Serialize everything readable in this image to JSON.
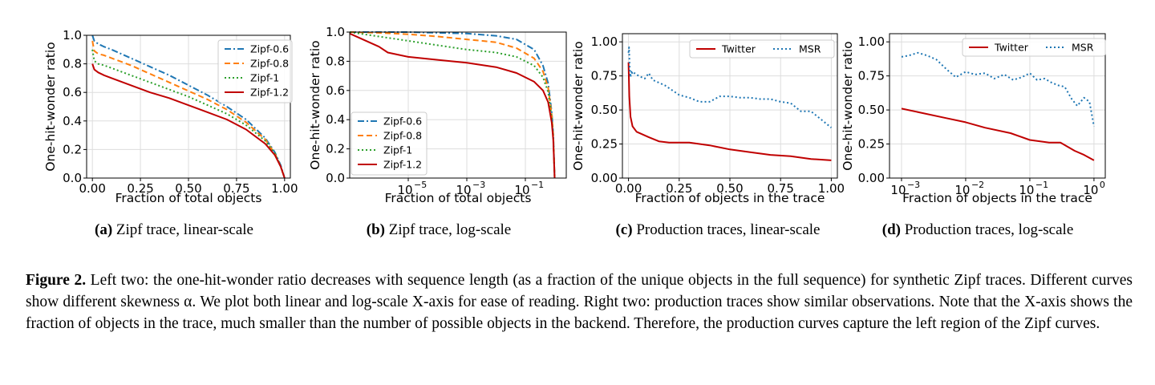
{
  "colors": {
    "blue": "#1f77b4",
    "orange": "#ff7f0e",
    "green": "#2ca02c",
    "red": "#c00000",
    "grid": "#dddddd",
    "frame": "#000000"
  },
  "panel_captions": [
    {
      "label": "(a)",
      "text": "Zipf trace, linear-scale"
    },
    {
      "label": "(b)",
      "text": "Zipf trace, log-scale"
    },
    {
      "label": "(c)",
      "text": "Production traces, linear-scale"
    },
    {
      "label": "(d)",
      "text": "Production traces, log-scale"
    }
  ],
  "figure_caption": {
    "label": "Figure 2.",
    "text": "Left two: the one-hit-wonder ratio decreases with sequence length (as a fraction of the unique objects in the full sequence) for synthetic Zipf traces. Different curves show different skewness α. We plot both linear and log-scale X-axis for ease of reading. Right two: production traces show similar observations. Note that the X-axis shows the fraction of objects in the trace, much smaller than the number of possible objects in the backend. Therefore, the production curves capture the left region of the Zipf curves."
  },
  "chart_data": [
    {
      "type": "line",
      "id": "a",
      "xscale": "linear",
      "xlabel": "Fraction of total objects",
      "ylabel": "One-hit-wonder ratio",
      "xlim": [
        -0.03,
        1.03
      ],
      "ylim": [
        0.0,
        1.0
      ],
      "xticks": [
        0.0,
        0.25,
        0.5,
        0.75,
        1.0
      ],
      "xtick_labels": [
        "0.00",
        "0.25",
        "0.50",
        "0.75",
        "1.00"
      ],
      "yticks": [
        0.0,
        0.2,
        0.4,
        0.6,
        0.8,
        1.0
      ],
      "ytick_labels": [
        "0.0",
        "0.2",
        "0.4",
        "0.6",
        "0.8",
        "1.0"
      ],
      "legend_position": "top-right",
      "series": [
        {
          "name": "Zipf-0.6",
          "color": "blue",
          "dash": "dashdot",
          "x": [
            0.0,
            0.01,
            0.03,
            0.06,
            0.1,
            0.2,
            0.3,
            0.4,
            0.5,
            0.6,
            0.7,
            0.8,
            0.9,
            0.95,
            0.98,
            1.0
          ],
          "y": [
            1.0,
            0.96,
            0.94,
            0.92,
            0.9,
            0.84,
            0.78,
            0.72,
            0.65,
            0.58,
            0.5,
            0.41,
            0.28,
            0.18,
            0.09,
            0.0
          ]
        },
        {
          "name": "Zipf-0.8",
          "color": "orange",
          "dash": "dashed",
          "x": [
            0.0,
            0.01,
            0.03,
            0.06,
            0.1,
            0.2,
            0.3,
            0.4,
            0.5,
            0.6,
            0.7,
            0.8,
            0.9,
            0.95,
            0.98,
            1.0
          ],
          "y": [
            0.96,
            0.89,
            0.87,
            0.86,
            0.84,
            0.79,
            0.73,
            0.67,
            0.61,
            0.55,
            0.48,
            0.39,
            0.27,
            0.17,
            0.08,
            0.0
          ]
        },
        {
          "name": "Zipf-1",
          "color": "green",
          "dash": "dotted",
          "x": [
            0.0,
            0.01,
            0.03,
            0.06,
            0.1,
            0.2,
            0.3,
            0.4,
            0.5,
            0.6,
            0.7,
            0.8,
            0.9,
            0.95,
            0.98,
            1.0
          ],
          "y": [
            0.9,
            0.82,
            0.8,
            0.79,
            0.77,
            0.72,
            0.67,
            0.62,
            0.57,
            0.51,
            0.45,
            0.37,
            0.26,
            0.17,
            0.08,
            0.0
          ]
        },
        {
          "name": "Zipf-1.2",
          "color": "red",
          "dash": "solid",
          "x": [
            0.0,
            0.01,
            0.03,
            0.06,
            0.1,
            0.2,
            0.3,
            0.4,
            0.5,
            0.6,
            0.7,
            0.8,
            0.9,
            0.95,
            0.98,
            1.0
          ],
          "y": [
            0.8,
            0.76,
            0.74,
            0.72,
            0.7,
            0.65,
            0.6,
            0.56,
            0.51,
            0.46,
            0.41,
            0.34,
            0.24,
            0.16,
            0.08,
            0.0
          ]
        }
      ]
    },
    {
      "type": "line",
      "id": "b",
      "xscale": "log",
      "xlabel": "Fraction of total objects",
      "ylabel": "One-hit-wonder ratio",
      "xlim": [
        1e-07,
        2.5
      ],
      "ylim": [
        0.0,
        1.0
      ],
      "xticks": [
        1e-05,
        0.001,
        0.1
      ],
      "xtick_labels": [
        [
          "10",
          "−5"
        ],
        [
          "10",
          "−3"
        ],
        [
          "10",
          "−1"
        ]
      ],
      "yticks": [
        0.0,
        0.2,
        0.4,
        0.6,
        0.8,
        1.0
      ],
      "ytick_labels": [
        "0.0",
        "0.2",
        "0.4",
        "0.6",
        "0.8",
        "1.0"
      ],
      "legend_position": "lower-left",
      "series": [
        {
          "name": "Zipf-0.6",
          "color": "blue",
          "dash": "dashdot",
          "x": [
            1e-07,
            1e-06,
            1e-05,
            0.0001,
            0.001,
            0.01,
            0.05,
            0.2,
            0.4,
            0.6,
            0.8,
            0.9,
            1.0
          ],
          "y": [
            1.0,
            1.0,
            1.0,
            0.995,
            0.99,
            0.975,
            0.95,
            0.88,
            0.77,
            0.65,
            0.45,
            0.3,
            0.0
          ]
        },
        {
          "name": "Zipf-0.8",
          "color": "orange",
          "dash": "dashed",
          "x": [
            1e-07,
            1e-06,
            1e-05,
            0.0001,
            0.001,
            0.01,
            0.05,
            0.2,
            0.4,
            0.6,
            0.8,
            0.9,
            1.0
          ],
          "y": [
            1.0,
            0.995,
            0.985,
            0.97,
            0.95,
            0.93,
            0.89,
            0.82,
            0.73,
            0.62,
            0.43,
            0.29,
            0.0
          ]
        },
        {
          "name": "Zipf-1",
          "color": "green",
          "dash": "dotted",
          "x": [
            1e-07,
            1e-06,
            1e-05,
            0.0001,
            0.001,
            0.01,
            0.05,
            0.2,
            0.4,
            0.6,
            0.8,
            0.9,
            1.0
          ],
          "y": [
            1.0,
            0.97,
            0.94,
            0.91,
            0.88,
            0.86,
            0.83,
            0.77,
            0.69,
            0.59,
            0.41,
            0.28,
            0.0
          ]
        },
        {
          "name": "Zipf-1.2",
          "color": "red",
          "dash": "solid",
          "x": [
            1e-07,
            1e-06,
            2e-06,
            1e-05,
            0.0001,
            0.001,
            0.01,
            0.05,
            0.2,
            0.4,
            0.6,
            0.8,
            0.9,
            1.0
          ],
          "y": [
            0.99,
            0.9,
            0.86,
            0.83,
            0.81,
            0.79,
            0.76,
            0.72,
            0.66,
            0.6,
            0.52,
            0.38,
            0.26,
            0.0
          ]
        }
      ]
    },
    {
      "type": "line",
      "id": "c",
      "xscale": "linear",
      "xlabel": "Fraction of objects in the trace",
      "ylabel": "One-hit-wonder ratio",
      "xlim": [
        -0.03,
        1.03
      ],
      "ylim": [
        0.0,
        1.06
      ],
      "xticks": [
        0.0,
        0.25,
        0.5,
        0.75,
        1.0
      ],
      "xtick_labels": [
        "0.00",
        "0.25",
        "0.50",
        "0.75",
        "1.00"
      ],
      "yticks": [
        0.0,
        0.25,
        0.5,
        0.75,
        1.0
      ],
      "ytick_labels": [
        "0.00",
        "0.25",
        "0.50",
        "0.75",
        "1.00"
      ],
      "legend_position": "top",
      "series": [
        {
          "name": "Twitter",
          "color": "red",
          "dash": "solid",
          "x": [
            0.0,
            0.004,
            0.01,
            0.02,
            0.04,
            0.07,
            0.1,
            0.15,
            0.2,
            0.3,
            0.4,
            0.5,
            0.6,
            0.7,
            0.8,
            0.9,
            1.0
          ],
          "y": [
            0.85,
            0.6,
            0.45,
            0.38,
            0.34,
            0.32,
            0.3,
            0.27,
            0.26,
            0.26,
            0.24,
            0.21,
            0.19,
            0.17,
            0.16,
            0.14,
            0.13
          ]
        },
        {
          "name": "MSR",
          "color": "blue",
          "dash": "dotted",
          "x": [
            0.0,
            0.003,
            0.006,
            0.01,
            0.015,
            0.02,
            0.03,
            0.05,
            0.08,
            0.1,
            0.12,
            0.15,
            0.18,
            0.2,
            0.25,
            0.3,
            0.35,
            0.4,
            0.45,
            0.5,
            0.55,
            0.6,
            0.65,
            0.7,
            0.75,
            0.8,
            0.85,
            0.9,
            0.95,
            1.0
          ],
          "y": [
            0.92,
            0.96,
            0.8,
            0.74,
            0.79,
            0.76,
            0.77,
            0.75,
            0.73,
            0.77,
            0.72,
            0.7,
            0.68,
            0.66,
            0.61,
            0.59,
            0.56,
            0.56,
            0.6,
            0.6,
            0.59,
            0.59,
            0.58,
            0.58,
            0.56,
            0.55,
            0.49,
            0.49,
            0.43,
            0.37
          ]
        }
      ]
    },
    {
      "type": "line",
      "id": "d",
      "xscale": "log",
      "xlabel": "Fraction of objects in the trace",
      "ylabel": "One-hit-wonder ratio",
      "xlim": [
        0.00065,
        1.5
      ],
      "ylim": [
        0.0,
        1.06
      ],
      "xticks": [
        0.001,
        0.01,
        0.1,
        1.0
      ],
      "xtick_labels": [
        [
          "10",
          "−3"
        ],
        [
          "10",
          "−2"
        ],
        [
          "10",
          "−1"
        ],
        [
          "10",
          "0"
        ]
      ],
      "yticks": [
        0.0,
        0.25,
        0.5,
        0.75,
        1.0
      ],
      "ytick_labels": [
        "0.00",
        "0.25",
        "0.50",
        "0.75",
        "1.00"
      ],
      "legend_position": "top",
      "series": [
        {
          "name": "Twitter",
          "color": "red",
          "dash": "solid",
          "x": [
            0.001,
            0.002,
            0.005,
            0.01,
            0.02,
            0.05,
            0.1,
            0.2,
            0.3,
            0.5,
            0.7,
            1.0
          ],
          "y": [
            0.51,
            0.48,
            0.44,
            0.41,
            0.37,
            0.33,
            0.28,
            0.26,
            0.26,
            0.2,
            0.17,
            0.13
          ]
        },
        {
          "name": "MSR",
          "color": "blue",
          "dash": "dotted",
          "x": [
            0.001,
            0.0013,
            0.0018,
            0.0025,
            0.0035,
            0.005,
            0.007,
            0.01,
            0.014,
            0.02,
            0.028,
            0.04,
            0.055,
            0.075,
            0.1,
            0.13,
            0.17,
            0.22,
            0.28,
            0.35,
            0.45,
            0.55,
            0.7,
            0.85,
            1.0
          ],
          "y": [
            0.89,
            0.9,
            0.92,
            0.9,
            0.87,
            0.8,
            0.74,
            0.78,
            0.76,
            0.77,
            0.73,
            0.76,
            0.72,
            0.74,
            0.77,
            0.72,
            0.73,
            0.7,
            0.68,
            0.67,
            0.58,
            0.53,
            0.59,
            0.56,
            0.38
          ]
        }
      ]
    }
  ]
}
